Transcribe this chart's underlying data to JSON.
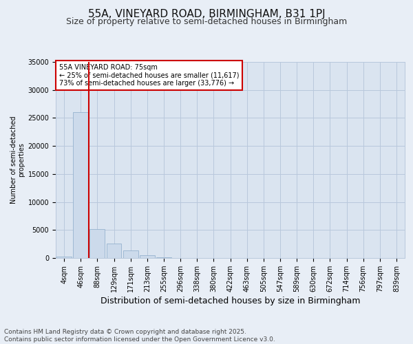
{
  "title": "55A, VINEYARD ROAD, BIRMINGHAM, B31 1PJ",
  "subtitle": "Size of property relative to semi-detached houses in Birmingham",
  "xlabel": "Distribution of semi-detached houses by size in Birmingham",
  "ylabel": "Number of semi-detached\nproperties",
  "property_label": "55A VINEYARD ROAD: 75sqm",
  "smaller_pct": 25,
  "smaller_count": 11617,
  "larger_pct": 73,
  "larger_count": 33776,
  "bin_labels": [
    "4sqm",
    "46sqm",
    "88sqm",
    "129sqm",
    "171sqm",
    "213sqm",
    "255sqm",
    "296sqm",
    "338sqm",
    "380sqm",
    "422sqm",
    "463sqm",
    "505sqm",
    "547sqm",
    "589sqm",
    "630sqm",
    "672sqm",
    "714sqm",
    "756sqm",
    "797sqm",
    "839sqm"
  ],
  "bar_heights": [
    200,
    26000,
    5100,
    2600,
    1400,
    500,
    100,
    20,
    5,
    2,
    1,
    0,
    0,
    0,
    0,
    0,
    0,
    0,
    0,
    0,
    0
  ],
  "bar_color": "#ccdaeb",
  "bar_edge_color": "#8aaac8",
  "vline_color": "#cc0000",
  "vline_x": 1.5,
  "ylim": [
    0,
    35000
  ],
  "yticks": [
    0,
    5000,
    10000,
    15000,
    20000,
    25000,
    30000,
    35000
  ],
  "grid_color": "#b8c8dc",
  "background_color": "#e8eef6",
  "plot_bg_color": "#dae4f0",
  "annotation_box_color": "#ffffff",
  "annotation_box_edge": "#cc0000",
  "footer": "Contains HM Land Registry data © Crown copyright and database right 2025.\nContains public sector information licensed under the Open Government Licence v3.0.",
  "title_fontsize": 11,
  "subtitle_fontsize": 9,
  "ylabel_fontsize": 7,
  "xlabel_fontsize": 9,
  "tick_fontsize": 7,
  "footer_fontsize": 6.5,
  "ann_fontsize": 7
}
